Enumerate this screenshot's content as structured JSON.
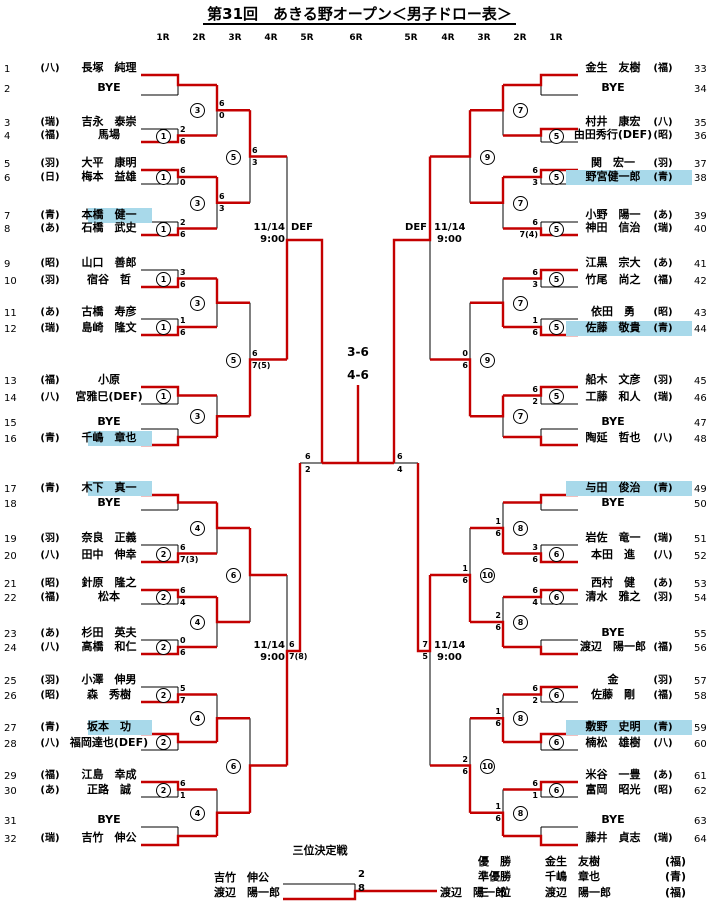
{
  "title": "第31回　あきる野オープン＜男子ドロー表＞",
  "round_headers": [
    "1R",
    "2R",
    "3R",
    "4R",
    "5R",
    "6R",
    "5R",
    "4R",
    "3R",
    "2R",
    "1R"
  ],
  "bracket": {
    "left_entries": [
      {
        "no": "1",
        "club": "(八)",
        "name": "長塚　純理",
        "highlight": false
      },
      {
        "no": "2",
        "club": "",
        "name": "BYE",
        "highlight": false
      },
      {
        "no": "3",
        "club": "(瑞)",
        "name": "吉永　泰崇",
        "highlight": false
      },
      {
        "no": "4",
        "club": "(福)",
        "name": "馬場",
        "highlight": false
      },
      {
        "no": "5",
        "club": "(羽)",
        "name": "大平　康明",
        "highlight": false
      },
      {
        "no": "6",
        "club": "(日)",
        "name": "梅本　益雄",
        "highlight": false
      },
      {
        "no": "7",
        "club": "(青)",
        "name": "本橋　健一",
        "highlight": true
      },
      {
        "no": "8",
        "club": "(あ)",
        "name": "石橋　武史",
        "highlight": false
      },
      {
        "no": "9",
        "club": "(昭)",
        "name": "山口　善郎",
        "highlight": false
      },
      {
        "no": "10",
        "club": "(羽)",
        "name": "宿谷　哲",
        "highlight": false
      },
      {
        "no": "11",
        "club": "(あ)",
        "name": "古橋　寿彦",
        "highlight": false
      },
      {
        "no": "12",
        "club": "(瑞)",
        "name": "島崎　隆文",
        "highlight": false
      },
      {
        "no": "13",
        "club": "(福)",
        "name": "小原",
        "highlight": false
      },
      {
        "no": "14",
        "club": "(八)",
        "name": "宮雅巳(DEF)",
        "highlight": false
      },
      {
        "no": "15",
        "club": "",
        "name": "BYE",
        "highlight": false
      },
      {
        "no": "16",
        "club": "(青)",
        "name": "千嶋　章也",
        "highlight": true
      },
      {
        "no": "17",
        "club": "(青)",
        "name": "木下　真一",
        "highlight": true
      },
      {
        "no": "18",
        "club": "",
        "name": "BYE",
        "highlight": false
      },
      {
        "no": "19",
        "club": "(羽)",
        "name": "奈良　正義",
        "highlight": false
      },
      {
        "no": "20",
        "club": "(八)",
        "name": "田中　伸幸",
        "highlight": false
      },
      {
        "no": "21",
        "club": "(昭)",
        "name": "針原　隆之",
        "highlight": false
      },
      {
        "no": "22",
        "club": "(福)",
        "name": "松本",
        "highlight": false
      },
      {
        "no": "23",
        "club": "(あ)",
        "name": "杉田　英夫",
        "highlight": false
      },
      {
        "no": "24",
        "club": "(八)",
        "name": "高橋　和仁",
        "highlight": false
      },
      {
        "no": "25",
        "club": "(羽)",
        "name": "小澤　伸男",
        "highlight": false
      },
      {
        "no": "26",
        "club": "(昭)",
        "name": "森　秀樹",
        "highlight": false
      },
      {
        "no": "27",
        "club": "(青)",
        "name": "坂本　功",
        "highlight": true
      },
      {
        "no": "28",
        "club": "(八)",
        "name": "福岡達也(DEF)",
        "highlight": false
      },
      {
        "no": "29",
        "club": "(福)",
        "name": "江島　幸成",
        "highlight": false
      },
      {
        "no": "30",
        "club": "(あ)",
        "name": "正路　誠",
        "highlight": false
      },
      {
        "no": "31",
        "club": "",
        "name": "BYE",
        "highlight": false
      },
      {
        "no": "32",
        "club": "(瑞)",
        "name": "吉竹　伸公",
        "highlight": false
      }
    ],
    "right_entries": [
      {
        "no": "33",
        "club": "(福)",
        "name": "金生　友樹",
        "highlight": false
      },
      {
        "no": "34",
        "club": "",
        "name": "BYE",
        "highlight": false
      },
      {
        "no": "35",
        "club": "(八)",
        "name": "村井　康宏",
        "highlight": false
      },
      {
        "no": "36",
        "club": "(昭)",
        "name": "由田秀行(DEF)",
        "highlight": false
      },
      {
        "no": "37",
        "club": "(羽)",
        "name": "関　宏一",
        "highlight": false
      },
      {
        "no": "38",
        "club": "(青)",
        "name": "野宮健一郎",
        "highlight": true
      },
      {
        "no": "39",
        "club": "(あ)",
        "name": "小野　陽一",
        "highlight": false
      },
      {
        "no": "40",
        "club": "(瑞)",
        "name": "神田　信治",
        "highlight": false
      },
      {
        "no": "41",
        "club": "(あ)",
        "name": "江黒　宗大",
        "highlight": false
      },
      {
        "no": "42",
        "club": "(福)",
        "name": "竹尾　尚之",
        "highlight": false
      },
      {
        "no": "43",
        "club": "(昭)",
        "name": "依田　勇",
        "highlight": false
      },
      {
        "no": "44",
        "club": "(青)",
        "name": "佐藤　敬貴",
        "highlight": true
      },
      {
        "no": "45",
        "club": "(羽)",
        "name": "船木　文彦",
        "highlight": false
      },
      {
        "no": "46",
        "club": "(瑞)",
        "name": "工藤　和人",
        "highlight": false
      },
      {
        "no": "47",
        "club": "",
        "name": "BYE",
        "highlight": false
      },
      {
        "no": "48",
        "club": "(八)",
        "name": "陶延　哲也",
        "highlight": false
      },
      {
        "no": "49",
        "club": "(青)",
        "name": "与田　俊治",
        "highlight": true
      },
      {
        "no": "50",
        "club": "",
        "name": "BYE",
        "highlight": false
      },
      {
        "no": "51",
        "club": "(瑞)",
        "name": "岩佐　竜一",
        "highlight": false
      },
      {
        "no": "52",
        "club": "(八)",
        "name": "本田　進",
        "highlight": false
      },
      {
        "no": "53",
        "club": "(あ)",
        "name": "西村　健",
        "highlight": false
      },
      {
        "no": "54",
        "club": "(羽)",
        "name": "清水　雅之",
        "highlight": false
      },
      {
        "no": "55",
        "club": "",
        "name": "BYE",
        "highlight": false
      },
      {
        "no": "56",
        "club": "(福)",
        "name": "渡辺　陽一郎",
        "highlight": false
      },
      {
        "no": "57",
        "club": "(羽)",
        "name": "金",
        "highlight": false
      },
      {
        "no": "58",
        "club": "(福)",
        "name": "佐藤　剛",
        "highlight": false
      },
      {
        "no": "59",
        "club": "(青)",
        "name": "敷野　史明",
        "highlight": true
      },
      {
        "no": "60",
        "club": "(八)",
        "name": "楠松　雄樹",
        "highlight": false
      },
      {
        "no": "61",
        "club": "(あ)",
        "name": "米谷　一豊",
        "highlight": false
      },
      {
        "no": "62",
        "club": "(昭)",
        "name": "富岡　昭光",
        "highlight": false
      },
      {
        "no": "63",
        "club": "",
        "name": "BYE",
        "highlight": false
      },
      {
        "no": "64",
        "club": "(瑞)",
        "name": "藤井　貞志",
        "highlight": false
      }
    ],
    "left_scores": {
      "r1": [
        null,
        [
          "2",
          "6"
        ],
        [
          "6",
          "0"
        ],
        [
          "2",
          "6"
        ],
        [
          "3",
          "6"
        ],
        [
          "1",
          "6"
        ],
        null,
        null,
        null,
        [
          "6",
          "7(3)"
        ],
        [
          "6",
          "4"
        ],
        [
          "0",
          "6"
        ],
        [
          "5",
          "7"
        ],
        null,
        [
          "6",
          "1"
        ],
        null
      ],
      "r2": [
        [
          "6",
          "0"
        ],
        [
          "6",
          "3"
        ],
        null,
        null,
        null,
        null,
        null,
        null
      ],
      "r3": [
        [
          "6",
          "3"
        ],
        [
          "6",
          "7(5)"
        ],
        null,
        null
      ],
      "qf": [
        null,
        [
          "6",
          "7(8)"
        ]
      ]
    },
    "right_scores": {
      "r1": [
        null,
        null,
        [
          "6",
          "3"
        ],
        [
          "6",
          "7(4)"
        ],
        [
          "6",
          "3"
        ],
        [
          "1",
          "6"
        ],
        [
          "6",
          "2"
        ],
        null,
        null,
        [
          "3",
          "6"
        ],
        [
          "6",
          "4"
        ],
        null,
        [
          "6",
          "2"
        ],
        null,
        [
          "6",
          "1"
        ],
        null
      ],
      "r2": [
        null,
        null,
        null,
        null,
        [
          "1",
          "6"
        ],
        [
          "2",
          "6"
        ],
        [
          "1",
          "6"
        ],
        [
          "1",
          "6"
        ]
      ],
      "r3": [
        null,
        [
          "0",
          "6"
        ],
        [
          "1",
          "6"
        ],
        [
          "2",
          "6"
        ]
      ],
      "qf": [
        null,
        [
          "7",
          "5"
        ]
      ]
    },
    "left_courts": {
      "r1": [
        null,
        "1",
        "1",
        "1",
        "1",
        "1",
        "1",
        null,
        null,
        "2",
        "2",
        "2",
        "2",
        "2",
        "2",
        null
      ],
      "r2": [
        "3",
        "3",
        "3",
        "3",
        "4",
        "4",
        "4",
        "4"
      ],
      "r3": [
        "5",
        "5",
        "6",
        "6"
      ]
    },
    "right_courts": {
      "r1": [
        null,
        "5",
        "5",
        "5",
        "5",
        "5",
        "5",
        null,
        null,
        "6",
        "6",
        null,
        "6",
        "6",
        "6",
        null
      ],
      "r2": [
        "7",
        "7",
        "7",
        "7",
        "8",
        "8",
        "8",
        "8"
      ],
      "r3": [
        "9",
        "9",
        "10",
        "10"
      ]
    },
    "progression": {
      "left_r1_winner_side": [
        0,
        1,
        0,
        1,
        1,
        1,
        0,
        1,
        0,
        1,
        0,
        1,
        1,
        0,
        0,
        1
      ],
      "left_r2_winner_side": [
        0,
        0,
        0,
        1,
        0,
        0,
        1,
        1
      ],
      "left_r3_winner_side": [
        0,
        1,
        0,
        1
      ],
      "left_qf_winner_side": [
        1,
        1
      ],
      "right_r1_winner_side": [
        0,
        0,
        0,
        1,
        0,
        1,
        0,
        1,
        0,
        1,
        0,
        1,
        0,
        0,
        0,
        1
      ],
      "right_r2_winner_side": [
        0,
        0,
        1,
        0,
        1,
        1,
        1,
        1
      ],
      "right_r3_winner_side": [
        0,
        1,
        1,
        1
      ],
      "right_qf_winner_side": [
        0,
        0
      ],
      "sf_winner_side": [
        0,
        0
      ],
      "final_winner": "right"
    }
  },
  "center": {
    "schedule_date": "11/14",
    "schedule_time": "9:00",
    "def_label": "DEF",
    "final_score_set1": "3-6",
    "final_score_set2": "4-6",
    "sf_left": [
      "6",
      "2"
    ],
    "sf_right": [
      "6",
      "4"
    ]
  },
  "third_place": {
    "heading": "三位決定戦",
    "player1": "吉竹　伸公",
    "player2": "渡辺　陽一郎",
    "score1": "2",
    "score2": "8",
    "winner_label": "渡辺　陽一郎"
  },
  "results": {
    "rows": [
      {
        "rank": "優　勝",
        "name": "金生　友樹",
        "club": "(福)"
      },
      {
        "rank": "準優勝",
        "name": "千嶋　章也",
        "club": "(青)"
      },
      {
        "rank": "三　位",
        "name": "渡辺　陽一郎",
        "club": "(福)"
      }
    ]
  }
}
